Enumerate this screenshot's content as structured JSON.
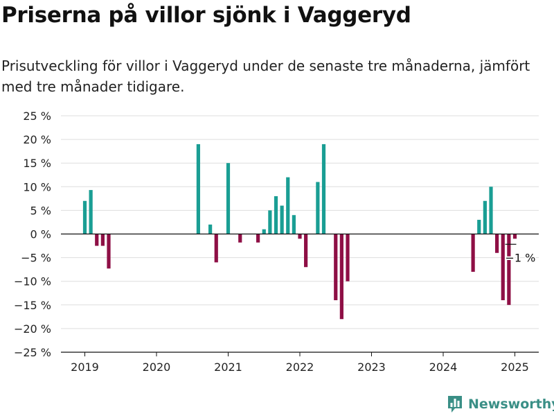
{
  "title": "Priserna på villor sjönk i Vaggeryd",
  "subtitle": "Prisutveckling för villor i Vaggeryd under de senaste tre månaderna, jämfört med tre månader tidigare.",
  "brand": {
    "name": "Newsworthy",
    "icon": "bar-chart-logo-icon",
    "color": "#3a8f86"
  },
  "colors": {
    "positive": "#1a9e94",
    "negative": "#8e0f45",
    "grid": "#dddddd",
    "zero_line": "#111111"
  },
  "chart_data": {
    "type": "bar",
    "title": "Priserna på villor sjönk i Vaggeryd",
    "subtitle": "Prisutveckling för villor i Vaggeryd under de senaste tre månaderna, jämfört med tre månader tidigare.",
    "xlabel": "",
    "ylabel": "",
    "ylim": [
      -25,
      25
    ],
    "yticks": [
      25,
      20,
      15,
      10,
      5,
      0,
      -5,
      -10,
      -15,
      -20,
      -25
    ],
    "y_tick_labels": [
      "25 %",
      "20 %",
      "15 %",
      "10 %",
      "5 %",
      "0 %",
      "−5 %",
      "−10 %",
      "−15 %",
      "−20 %",
      "−25 %"
    ],
    "xlim": [
      "2018-09",
      "2025-05"
    ],
    "xticks": [
      "2019",
      "2020",
      "2021",
      "2022",
      "2023",
      "2024",
      "2025"
    ],
    "grid": true,
    "annotation": {
      "month": "2025-01",
      "text": "−1 %"
    },
    "series": [
      {
        "points": [
          {
            "month": "2019-01",
            "value": 7
          },
          {
            "month": "2019-02",
            "value": 9.3
          },
          {
            "month": "2019-03",
            "value": -2.5
          },
          {
            "month": "2019-04",
            "value": -2.5
          },
          {
            "month": "2019-05",
            "value": -7.3
          },
          {
            "month": "2020-08",
            "value": 19
          },
          {
            "month": "2020-10",
            "value": 2
          },
          {
            "month": "2020-11",
            "value": -6
          },
          {
            "month": "2021-01",
            "value": 15
          },
          {
            "month": "2021-03",
            "value": -1.8
          },
          {
            "month": "2021-06",
            "value": -1.8
          },
          {
            "month": "2021-07",
            "value": 1
          },
          {
            "month": "2021-08",
            "value": 5
          },
          {
            "month": "2021-09",
            "value": 8
          },
          {
            "month": "2021-10",
            "value": 6
          },
          {
            "month": "2021-11",
            "value": 12
          },
          {
            "month": "2021-12",
            "value": 4
          },
          {
            "month": "2022-01",
            "value": -1
          },
          {
            "month": "2022-02",
            "value": -7
          },
          {
            "month": "2022-04",
            "value": 11
          },
          {
            "month": "2022-05",
            "value": 19
          },
          {
            "month": "2022-07",
            "value": -14
          },
          {
            "month": "2022-08",
            "value": -18
          },
          {
            "month": "2022-09",
            "value": -10
          },
          {
            "month": "2024-06",
            "value": -8
          },
          {
            "month": "2024-07",
            "value": 3
          },
          {
            "month": "2024-08",
            "value": 7
          },
          {
            "month": "2024-09",
            "value": 10
          },
          {
            "month": "2024-10",
            "value": -4
          },
          {
            "month": "2024-11",
            "value": -14
          },
          {
            "month": "2024-12",
            "value": -15
          },
          {
            "month": "2025-01",
            "value": -1
          }
        ]
      }
    ]
  }
}
